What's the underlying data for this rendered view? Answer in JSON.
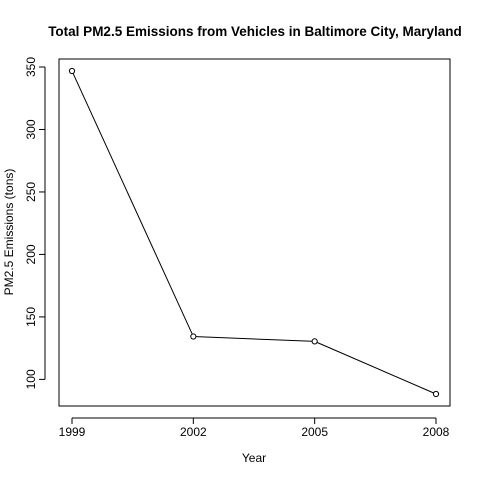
{
  "chart_data": {
    "type": "line",
    "title": "Total PM2.5 Emissions from Vehicles in Baltimore City, Maryland",
    "xlabel": "Year",
    "ylabel": "PM2.5 Emissions (tons)",
    "categories": [
      "1999",
      "2002",
      "2005",
      "2008"
    ],
    "values": [
      346.8,
      134.3,
      130.4,
      88.3
    ],
    "xlim": [
      1999,
      2008
    ],
    "ylim": [
      88.3,
      346.8
    ],
    "yticks": [
      100,
      150,
      200,
      250,
      300,
      350
    ],
    "grid": false,
    "markers": "open-circle",
    "line_color": "#000000"
  }
}
